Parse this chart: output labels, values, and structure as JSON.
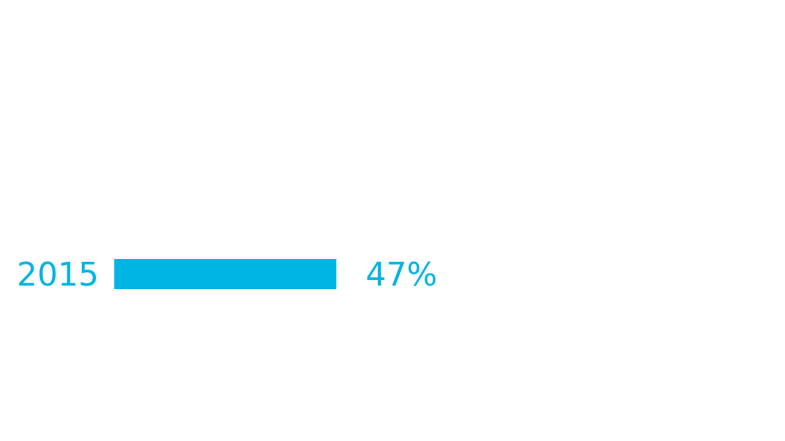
{
  "chart_data": {
    "type": "bar",
    "orientation": "horizontal",
    "categories": [
      "2015"
    ],
    "values": [
      47
    ],
    "value_labels": [
      "47%"
    ],
    "color": "#00b4e4",
    "tick_labels": "y"
  }
}
